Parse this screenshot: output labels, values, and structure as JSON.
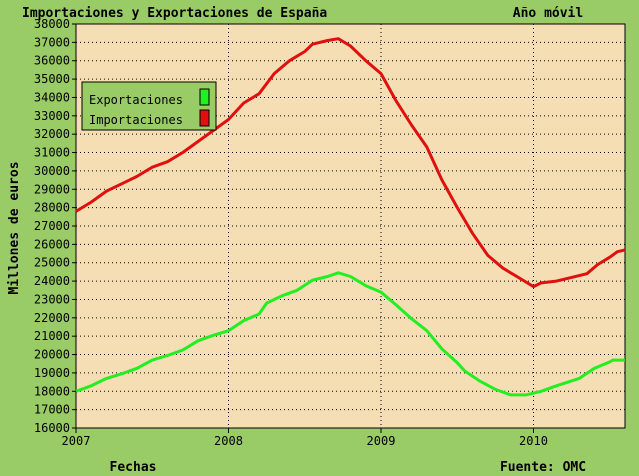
{
  "chart_data": {
    "type": "line",
    "title": "Importaciones y Exportaciones de España",
    "subtitle": "Año móvil",
    "xlabel": "Fechas",
    "ylabel": "Millones de euros",
    "source": "Fuente: OMC",
    "ylim": [
      16000,
      38000
    ],
    "y_ticks": [
      16000,
      17000,
      18000,
      19000,
      20000,
      21000,
      22000,
      23000,
      24000,
      25000,
      26000,
      27000,
      28000,
      29000,
      30000,
      31000,
      32000,
      33000,
      34000,
      35000,
      36000,
      37000,
      38000
    ],
    "xlim": [
      2007.0,
      2010.6
    ],
    "x_ticks": [
      2007,
      2008,
      2009,
      2010
    ],
    "grid": true,
    "legend_position": "top-left",
    "series": [
      {
        "name": "Exportaciones",
        "color": "#22ee22",
        "points": [
          [
            2007.0,
            18000
          ],
          [
            2007.1,
            18300
          ],
          [
            2007.2,
            18700
          ],
          [
            2007.3,
            18950
          ],
          [
            2007.4,
            19250
          ],
          [
            2007.5,
            19700
          ],
          [
            2007.6,
            19950
          ],
          [
            2007.7,
            20250
          ],
          [
            2007.8,
            20750
          ],
          [
            2007.9,
            21050
          ],
          [
            2008.0,
            21300
          ],
          [
            2008.1,
            21850
          ],
          [
            2008.2,
            22200
          ],
          [
            2008.25,
            22800
          ],
          [
            2008.35,
            23200
          ],
          [
            2008.45,
            23500
          ],
          [
            2008.55,
            24050
          ],
          [
            2008.65,
            24250
          ],
          [
            2008.72,
            24450
          ],
          [
            2008.8,
            24250
          ],
          [
            2008.9,
            23750
          ],
          [
            2009.0,
            23400
          ],
          [
            2009.1,
            22700
          ],
          [
            2009.2,
            21950
          ],
          [
            2009.3,
            21300
          ],
          [
            2009.4,
            20300
          ],
          [
            2009.5,
            19550
          ],
          [
            2009.55,
            19100
          ],
          [
            2009.65,
            18550
          ],
          [
            2009.75,
            18100
          ],
          [
            2009.85,
            17800
          ],
          [
            2009.95,
            17800
          ],
          [
            2010.05,
            18000
          ],
          [
            2010.15,
            18300
          ],
          [
            2010.3,
            18700
          ],
          [
            2010.4,
            19250
          ],
          [
            2010.5,
            19600
          ],
          [
            2010.52,
            19700
          ],
          [
            2010.6,
            19700
          ]
        ]
      },
      {
        "name": "Importaciones",
        "color": "#e01010",
        "points": [
          [
            2007.0,
            27800
          ],
          [
            2007.1,
            28300
          ],
          [
            2007.2,
            28900
          ],
          [
            2007.3,
            29300
          ],
          [
            2007.4,
            29700
          ],
          [
            2007.5,
            30200
          ],
          [
            2007.6,
            30500
          ],
          [
            2007.7,
            31000
          ],
          [
            2007.8,
            31600
          ],
          [
            2007.9,
            32200
          ],
          [
            2008.0,
            32800
          ],
          [
            2008.1,
            33700
          ],
          [
            2008.2,
            34200
          ],
          [
            2008.3,
            35300
          ],
          [
            2008.4,
            36000
          ],
          [
            2008.5,
            36500
          ],
          [
            2008.55,
            36900
          ],
          [
            2008.65,
            37100
          ],
          [
            2008.72,
            37200
          ],
          [
            2008.8,
            36800
          ],
          [
            2008.9,
            36000
          ],
          [
            2009.0,
            35300
          ],
          [
            2009.1,
            33800
          ],
          [
            2009.2,
            32500
          ],
          [
            2009.3,
            31300
          ],
          [
            2009.4,
            29500
          ],
          [
            2009.5,
            28000
          ],
          [
            2009.6,
            26600
          ],
          [
            2009.7,
            25400
          ],
          [
            2009.8,
            24700
          ],
          [
            2009.9,
            24200
          ],
          [
            2010.0,
            23700
          ],
          [
            2010.05,
            23900
          ],
          [
            2010.15,
            24000
          ],
          [
            2010.25,
            24200
          ],
          [
            2010.35,
            24400
          ],
          [
            2010.42,
            24900
          ],
          [
            2010.5,
            25300
          ],
          [
            2010.55,
            25600
          ],
          [
            2010.6,
            25700
          ]
        ]
      }
    ]
  }
}
